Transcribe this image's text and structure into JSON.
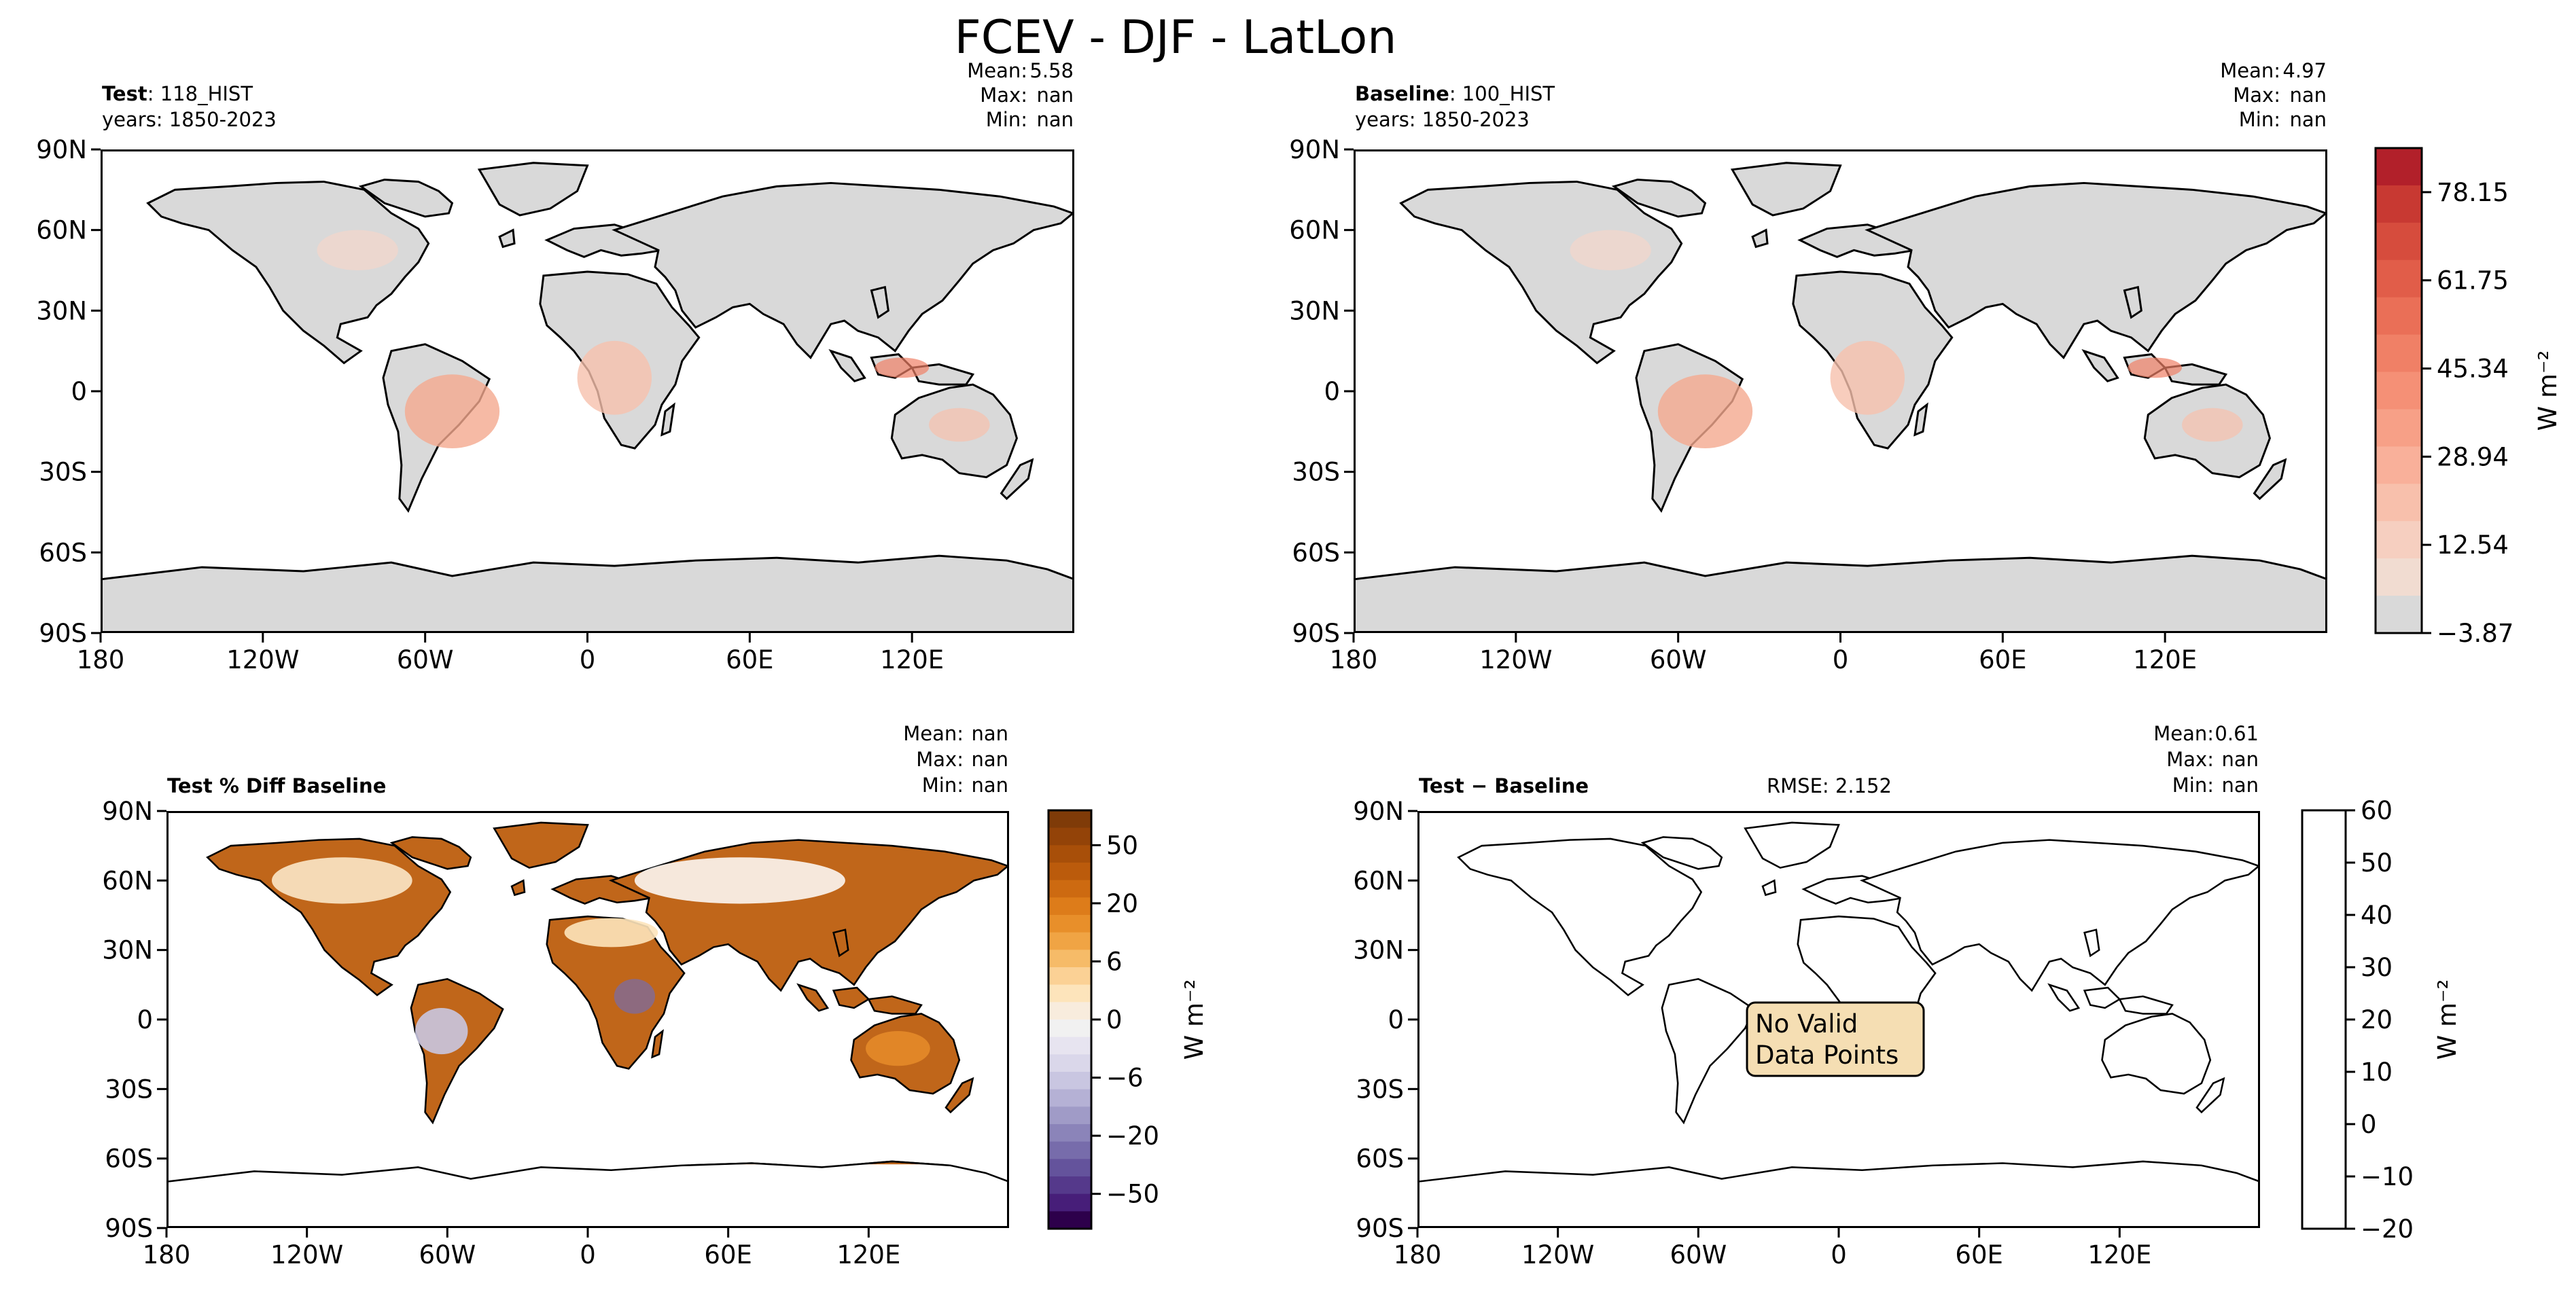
{
  "figure": {
    "title": "FCEV - DJF - LatLon"
  },
  "axis_ticks": {
    "lat": [
      "90N",
      "60N",
      "30N",
      "0",
      "30S",
      "60S",
      "90S"
    ],
    "lon": [
      "180",
      "120W",
      "60W",
      "0",
      "60E",
      "120E"
    ]
  },
  "panels": {
    "test": {
      "title_bold": "Test",
      "title_rest": ": 118_HIST",
      "years": "years: 1850-2023",
      "stats": {
        "mean_label": "Mean:",
        "mean": "5.58",
        "max_label": "Max:",
        "max": "nan",
        "min_label": "Min:",
        "min": "nan"
      }
    },
    "baseline": {
      "title_bold": "Baseline",
      "title_rest": ": 100_HIST",
      "years": "years: 1850-2023",
      "stats": {
        "mean_label": "Mean:",
        "mean": "4.97",
        "max_label": "Max:",
        "max": "nan",
        "min_label": "Min:",
        "min": "nan"
      }
    },
    "pct_diff": {
      "title": "Test % Diff Baseline",
      "stats": {
        "mean_label": "Mean:",
        "mean": "nan",
        "max_label": "Max:",
        "max": "nan",
        "min_label": "Min:",
        "min": "nan"
      }
    },
    "diff": {
      "title_bold": "Test",
      "title_rest": " − Baseline",
      "rmse": "RMSE: 2.152",
      "stats": {
        "mean_label": "Mean:",
        "mean": "0.61",
        "max_label": "Max:",
        "max": "nan",
        "min_label": "Min:",
        "min": "nan"
      },
      "no_data_line1": "No Valid",
      "no_data_line2": "Data Points"
    }
  },
  "colorbars": {
    "main": {
      "label": "W m⁻²",
      "ticks": [
        "78.15",
        "61.75",
        "45.34",
        "28.94",
        "12.54",
        "−3.87"
      ],
      "tick_values": [
        78.15,
        61.75,
        45.34,
        28.94,
        12.54,
        -3.87
      ],
      "range": [
        -3.87,
        86.35
      ],
      "colors": [
        "#d9d9d9",
        "#f1dcd1",
        "#f6cfc0",
        "#f8c0ac",
        "#f9b09a",
        "#f7a087",
        "#f59076",
        "#f08066",
        "#ea6f57",
        "#e15d49",
        "#d64c3d",
        "#c83932",
        "#b2202a"
      ]
    },
    "pct": {
      "label": "W m⁻²",
      "ticks": [
        "50",
        "20",
        "6",
        "0",
        "−6",
        "−20",
        "−50"
      ],
      "tick_values": [
        50,
        20,
        6,
        0,
        -6,
        -20,
        -50
      ],
      "colors_top_down": [
        "#7f3b08",
        "#934308",
        "#a84f09",
        "#bb5b0c",
        "#cd6a11",
        "#dd7c1a",
        "#e88f2a",
        "#f0a444",
        "#f6bb68",
        "#fbd195",
        "#fde4bb",
        "#f8ecdd",
        "#f1f1f1",
        "#e7e4f0",
        "#dad7ea",
        "#c9c6e1",
        "#b5b1d5",
        "#a09bc7",
        "#8b84b9",
        "#776cab",
        "#64539c",
        "#55398b",
        "#471e79",
        "#2d004b"
      ]
    },
    "diff": {
      "label": "W m⁻²",
      "ticks": [
        "60",
        "50",
        "40",
        "30",
        "20",
        "10",
        "0",
        "−10",
        "−20"
      ],
      "tick_values": [
        60,
        50,
        40,
        30,
        20,
        10,
        0,
        -10,
        -20
      ]
    }
  },
  "colors": {
    "land": "#d9d9d9",
    "box_fill": "#f5deb3",
    "ocean": "#ffffff"
  }
}
